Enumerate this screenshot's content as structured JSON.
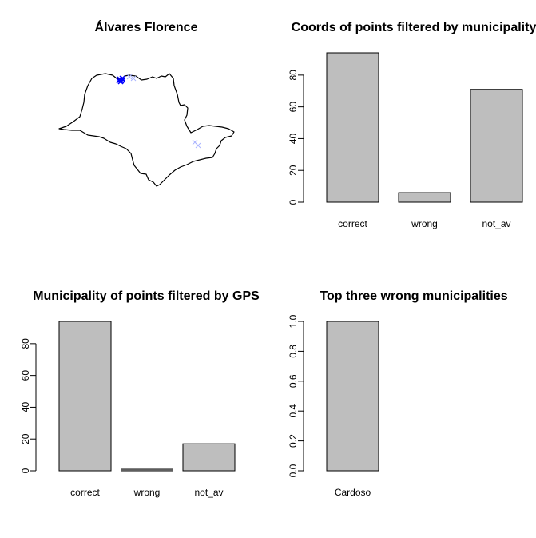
{
  "figure": {
    "background": "#ffffff",
    "bar_fill": "#bebebe",
    "bar_stroke": "#000000"
  },
  "map_panel": {
    "title": "Álvares Florence",
    "points": [
      {
        "label": "points",
        "color": "#0000ff",
        "marker": "x"
      },
      {
        "label": "faded points",
        "color": "#aab4ff",
        "marker": "x"
      }
    ]
  },
  "chart_data": [
    {
      "type": "bar",
      "title": "Coords of points filtered by municipality",
      "categories": [
        "correct",
        "wrong",
        "not_av"
      ],
      "values": [
        94,
        6,
        71
      ],
      "ylim": [
        0,
        94
      ],
      "yticks": [
        0,
        20,
        40,
        60,
        80
      ],
      "xlabel": "",
      "ylabel": "",
      "grid": false
    },
    {
      "type": "bar",
      "title": "Municipality of points filtered by GPS",
      "categories": [
        "correct",
        "wrong",
        "not_av"
      ],
      "values": [
        94,
        1,
        17
      ],
      "ylim": [
        0,
        94
      ],
      "yticks": [
        0,
        20,
        40,
        60,
        80
      ],
      "xlabel": "",
      "ylabel": "",
      "grid": false
    },
    {
      "type": "bar",
      "title": "Top three wrong municipalities",
      "categories": [
        "Cardoso"
      ],
      "values": [
        1
      ],
      "ylim": [
        0,
        1
      ],
      "yticks": [
        "0.0",
        "0.2",
        "0.4",
        "0.6",
        "0.8",
        "1.0"
      ],
      "xlabel": "",
      "ylabel": "",
      "grid": false
    }
  ]
}
